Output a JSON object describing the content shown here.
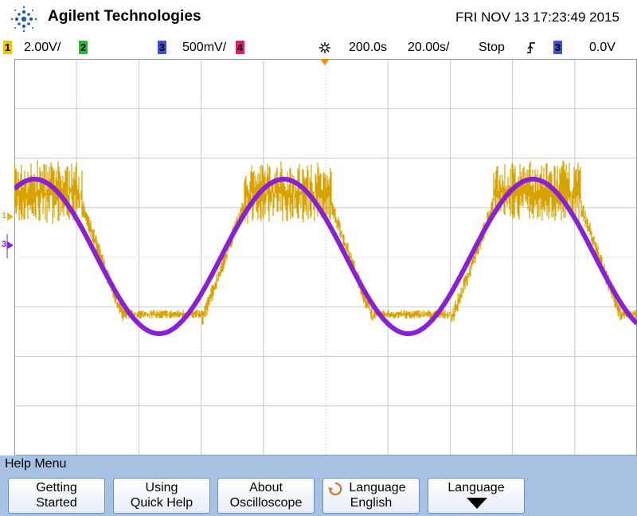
{
  "header": {
    "brand": "Agilent Technologies",
    "datetime": "FRI NOV 13 17:23:49 2015",
    "logo_icon": "agilent-spark-icon"
  },
  "statusbar": {
    "ch1_num": "1",
    "ch1_scale": "2.00V/",
    "ch2_num": "2",
    "ch3_num": "3",
    "ch3_scale": "500mV/",
    "ch4_num": "4",
    "delay": "200.0s",
    "timebase": "20.00s/",
    "run_state": "Stop",
    "trigger_source": "3",
    "trigger_level": "0.0V",
    "colors": {
      "ch1": "#e8c700",
      "ch2": "#1fbe2a",
      "ch3": "#3d4fd8",
      "ch4": "#e01d6a"
    }
  },
  "markers": {
    "ch1": "1",
    "ch3": "3"
  },
  "traces": {
    "ch1_color": "#d6a300",
    "ch3_color": "#8a1fd6",
    "ch1_level": 0.82,
    "ch3_level": 0.45
  },
  "help": {
    "title": "Help Menu",
    "softkeys": [
      {
        "line1": "Getting",
        "line2": "Started"
      },
      {
        "line1": "Using",
        "line2": "Quick Help"
      },
      {
        "line1": "About",
        "line2": "Oscilloscope"
      },
      {
        "line1": "Language",
        "line2": "English"
      },
      {
        "line1": "Language",
        "line2": ""
      }
    ]
  }
}
